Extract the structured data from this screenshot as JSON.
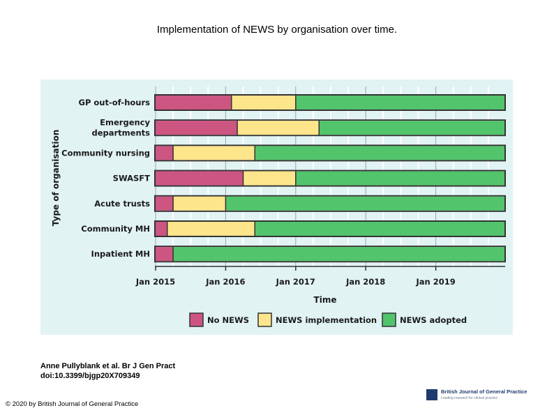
{
  "page": {
    "title": "Implementation of NEWS by organisation over time.",
    "citation_line1": "Anne Pullyblank et al. Br J Gen Pract",
    "citation_line2": "doi:10.3399/bjgp20X709349",
    "copyright": "© 2020 by British Journal of General Practice",
    "journal_name": "British Journal of General Practice",
    "journal_tagline": "Leading research for clinical practice"
  },
  "colors": {
    "no_news": "#cc5581",
    "implementation": "#fce58a",
    "adopted": "#52c46c",
    "panel": "#e2f3f4",
    "track": "#ffffff",
    "track_border": "#333333"
  },
  "chart_data": {
    "type": "bar",
    "orientation": "horizontal",
    "stacked": true,
    "ylabel": "Type of organisation",
    "xlabel": "Time",
    "x_ticks": [
      "Jan 2015",
      "Jan 2016",
      "Jan 2017",
      "Jan 2018",
      "Jan 2019"
    ],
    "x_range": [
      "2015-01",
      "2020-01"
    ],
    "grid": true,
    "legend_position": "bottom",
    "legend": [
      {
        "key": "no_news",
        "label": "No NEWS"
      },
      {
        "key": "implementation",
        "label": "NEWS implementation"
      },
      {
        "key": "adopted",
        "label": "NEWS adopted"
      }
    ],
    "categories": [
      "GP out-of-hours",
      "Emergency departments",
      "Community nursing",
      "SWASFT",
      "Acute trusts",
      "Community MH",
      "Inpatient MH"
    ],
    "category_lines": [
      [
        "GP out-of-hours"
      ],
      [
        "Emergency",
        "departments"
      ],
      [
        "Community nursing"
      ],
      [
        "SWASFT"
      ],
      [
        "Acute trusts"
      ],
      [
        "Community MH"
      ],
      [
        "Inpatient MH"
      ]
    ],
    "rows": [
      {
        "category": "GP out-of-hours",
        "implementation_start": "2016-02",
        "adopted_start": "2017-01"
      },
      {
        "category": "Emergency departments",
        "implementation_start": "2016-03",
        "adopted_start": "2017-05"
      },
      {
        "category": "Community nursing",
        "implementation_start": "2015-04",
        "adopted_start": "2016-06"
      },
      {
        "category": "SWASFT",
        "implementation_start": "2016-04",
        "adopted_start": "2017-01"
      },
      {
        "category": "Acute trusts",
        "implementation_start": "2015-04",
        "adopted_start": "2016-01"
      },
      {
        "category": "Community MH",
        "implementation_start": "2015-03",
        "adopted_start": "2016-06"
      },
      {
        "category": "Inpatient MH",
        "implementation_start": "2015-04",
        "adopted_start": "2015-04"
      }
    ]
  }
}
